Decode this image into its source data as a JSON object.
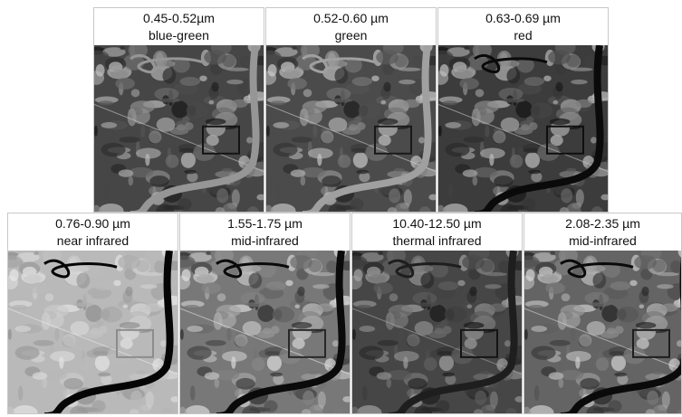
{
  "panels": [
    {
      "band": "0.45-0.52µm",
      "name": "blue-green"
    },
    {
      "band": "0.52-0.60 µm",
      "name": "green"
    },
    {
      "band": "0.63-0.69 µm",
      "name": "red"
    },
    {
      "band": "0.76-0.90 µm",
      "name": "near infrared"
    },
    {
      "band": "1.55-1.75 µm",
      "name": "mid-infrared"
    },
    {
      "band": "10.40-12.50 µm",
      "name": "thermal infrared"
    },
    {
      "band": "2.08-2.35 µm",
      "name": "mid-infrared"
    }
  ]
}
